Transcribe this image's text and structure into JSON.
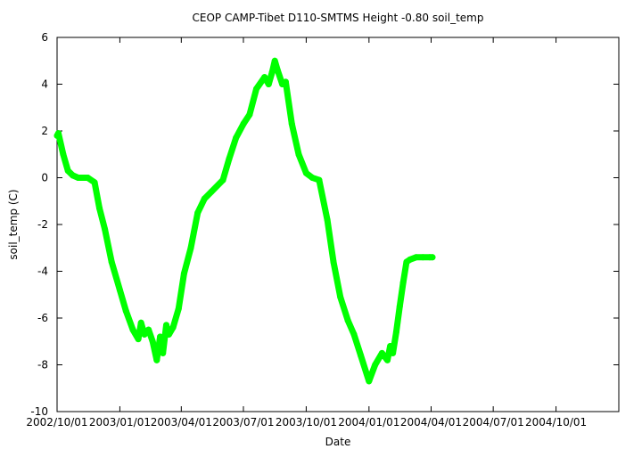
{
  "chart_data": {
    "type": "line",
    "title": "CEOP CAMP-Tibet D110-SMTMS Height -0.80 soil_temp",
    "xlabel": "Date",
    "ylabel": "soil_temp (C)",
    "xlim": [
      "2002-10-01",
      "2005-01-01"
    ],
    "ylim": [
      -10,
      6
    ],
    "x_ticks": [
      "2002/10/01",
      "2003/01/01",
      "2003/04/01",
      "2003/07/01",
      "2003/10/01",
      "2004/01/01",
      "2004/04/01",
      "2004/07/01",
      "2004/10/01"
    ],
    "y_ticks": [
      -10,
      -8,
      -6,
      -4,
      -2,
      0,
      2,
      4,
      6
    ],
    "grid": false,
    "legend": "none",
    "series": [
      {
        "color": "#00ff00",
        "x": [
          "2002-10-01",
          "2002-10-03",
          "2002-10-10",
          "2002-10-17",
          "2002-10-24",
          "2002-11-01",
          "2002-11-15",
          "2002-11-25",
          "2002-12-02",
          "2002-12-10",
          "2002-12-20",
          "2003-01-01",
          "2003-01-10",
          "2003-01-20",
          "2003-01-28",
          "2003-02-01",
          "2003-02-06",
          "2003-02-12",
          "2003-02-18",
          "2003-02-24",
          "2003-03-01",
          "2003-03-05",
          "2003-03-10",
          "2003-03-14",
          "2003-03-20",
          "2003-03-28",
          "2003-04-05",
          "2003-04-15",
          "2003-04-25",
          "2003-05-05",
          "2003-05-15",
          "2003-06-01",
          "2003-06-10",
          "2003-06-20",
          "2003-07-01",
          "2003-07-10",
          "2003-07-20",
          "2003-08-01",
          "2003-08-07",
          "2003-08-12",
          "2003-08-16",
          "2003-08-20",
          "2003-08-27",
          "2003-09-01",
          "2003-09-10",
          "2003-09-20",
          "2003-10-01",
          "2003-10-10",
          "2003-10-20",
          "2003-11-01",
          "2003-11-10",
          "2003-11-20",
          "2003-12-01",
          "2003-12-10",
          "2003-12-20",
          "2004-01-01",
          "2004-01-10",
          "2004-01-20",
          "2004-01-28",
          "2004-02-01",
          "2004-02-05",
          "2004-02-10",
          "2004-02-15",
          "2004-02-20",
          "2004-02-25",
          "2004-03-01",
          "2004-03-10",
          "2004-03-20",
          "2004-03-30",
          "2004-04-03"
        ],
        "y": [
          1.8,
          1.9,
          1.0,
          0.3,
          0.1,
          0.0,
          0.0,
          -0.2,
          -1.3,
          -2.2,
          -3.6,
          -4.8,
          -5.7,
          -6.5,
          -6.9,
          -6.2,
          -6.7,
          -6.5,
          -7.0,
          -7.8,
          -6.8,
          -7.5,
          -6.3,
          -6.7,
          -6.4,
          -5.6,
          -4.1,
          -3.0,
          -1.5,
          -0.9,
          -0.6,
          -0.1,
          0.8,
          1.7,
          2.3,
          2.7,
          3.8,
          4.3,
          4.0,
          4.5,
          5.0,
          4.6,
          4.0,
          4.1,
          2.3,
          1.0,
          0.2,
          0.0,
          -0.1,
          -1.8,
          -3.6,
          -5.1,
          -6.1,
          -6.7,
          -7.6,
          -8.7,
          -8.0,
          -7.5,
          -7.8,
          -7.2,
          -7.5,
          -6.6,
          -5.5,
          -4.5,
          -3.6,
          -3.5,
          -3.4,
          -3.4,
          -3.4,
          -3.4
        ]
      }
    ]
  }
}
